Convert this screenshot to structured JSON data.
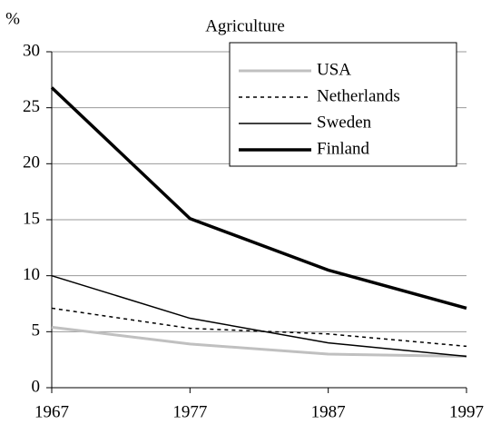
{
  "chart_data": {
    "type": "line",
    "title": "Agriculture",
    "y_label": "%",
    "x": [
      1967,
      1977,
      1987,
      1997
    ],
    "xlim": [
      1967,
      1997
    ],
    "xticks": [
      1967,
      1977,
      1987,
      1997
    ],
    "ylim": [
      0,
      30
    ],
    "yticks": [
      0,
      5,
      10,
      15,
      20,
      25,
      30
    ],
    "grid": true,
    "legend": "top-right",
    "series": [
      {
        "name": "USA",
        "color": "#c0c0c0",
        "line_width": 3,
        "dash": false,
        "values": [
          5.4,
          3.9,
          3.0,
          2.8
        ]
      },
      {
        "name": "Netherlands",
        "color": "#000000",
        "line_width": 1.5,
        "dash": true,
        "values": [
          7.1,
          5.3,
          4.8,
          3.7
        ]
      },
      {
        "name": "Sweden",
        "color": "#000000",
        "line_width": 1.5,
        "dash": false,
        "values": [
          10.0,
          6.2,
          4.0,
          2.8
        ]
      },
      {
        "name": "Finland",
        "color": "#000000",
        "line_width": 3.5,
        "dash": false,
        "values": [
          26.8,
          15.1,
          10.5,
          7.1
        ]
      }
    ]
  }
}
